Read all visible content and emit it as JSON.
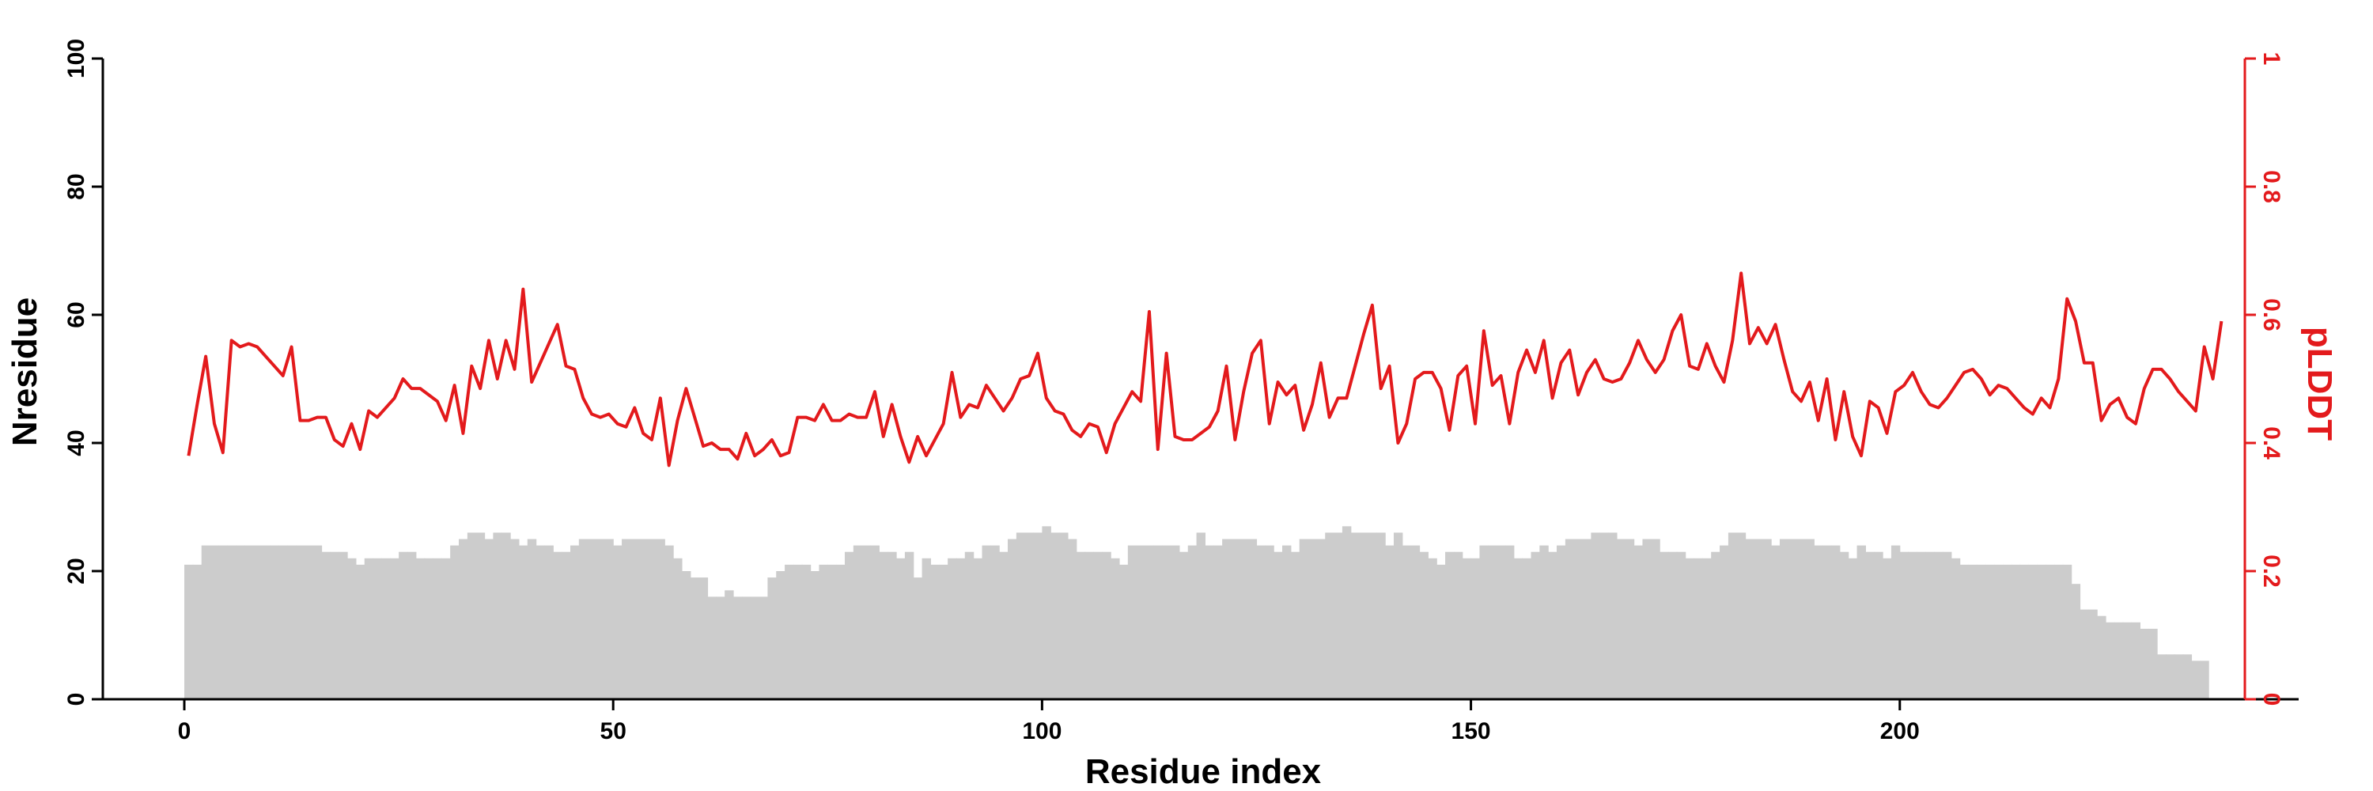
{
  "chart_data": {
    "type": "bar+line",
    "xlabel": "Residue index",
    "ylabel_left": "Nresidue",
    "ylabel_right": "pLDDT",
    "xlim": [
      -9.5,
      246.5
    ],
    "ylim_left": [
      0,
      100
    ],
    "ylim_right": [
      0,
      1
    ],
    "x_ticks": [
      0,
      50,
      100,
      150,
      200
    ],
    "y_left_ticks": [
      0,
      20,
      40,
      60,
      80,
      100
    ],
    "y_right_ticks": [
      "0",
      "0.2",
      "0.4",
      "0.6",
      "0.8",
      "1"
    ],
    "grid": false,
    "colors": {
      "bars": "#cccccc",
      "line": "#e31a1c",
      "axis": "#000000",
      "right_axis": "#e31a1c"
    },
    "series": [
      {
        "type": "bar",
        "axis": "left",
        "x_start": 0,
        "values": [
          21,
          21,
          24,
          24,
          24,
          24,
          24,
          24,
          24,
          24,
          24,
          24,
          24,
          24,
          24,
          24,
          23,
          23,
          23,
          22,
          21,
          22,
          22,
          22,
          22,
          23,
          23,
          22,
          22,
          22,
          22,
          24,
          25,
          26,
          26,
          25,
          26,
          26,
          25,
          24,
          25,
          24,
          24,
          23,
          23,
          24,
          25,
          25,
          25,
          25,
          24,
          25,
          25,
          25,
          25,
          25,
          24,
          22,
          20,
          19,
          19,
          16,
          16,
          17,
          16,
          16,
          16,
          16,
          19,
          20,
          21,
          21,
          21,
          20,
          21,
          21,
          21,
          23,
          24,
          24,
          24,
          23,
          23,
          22,
          23,
          19,
          22,
          21,
          21,
          22,
          22,
          23,
          22,
          24,
          24,
          23,
          25,
          26,
          26,
          26,
          27,
          26,
          26,
          25,
          23,
          23,
          23,
          23,
          22,
          21,
          24,
          24,
          24,
          24,
          24,
          24,
          23,
          24,
          26,
          24,
          24,
          25,
          25,
          25,
          25,
          24,
          24,
          23,
          24,
          23,
          25,
          25,
          25,
          26,
          26,
          27,
          26,
          26,
          26,
          26,
          24,
          26,
          24,
          24,
          23,
          22,
          21,
          23,
          23,
          22,
          22,
          24,
          24,
          24,
          24,
          22,
          22,
          23,
          24,
          23,
          24,
          25,
          25,
          25,
          26,
          26,
          26,
          25,
          25,
          24,
          25,
          25,
          23,
          23,
          23,
          22,
          22,
          22,
          23,
          24,
          26,
          26,
          25,
          25,
          25,
          24,
          25,
          25,
          25,
          25,
          24,
          24,
          24,
          23,
          22,
          24,
          23,
          23,
          22,
          24,
          23,
          23,
          23,
          23,
          23,
          23,
          22,
          21,
          21,
          21,
          21,
          21,
          21,
          21,
          21,
          21,
          21,
          21,
          21,
          21,
          18,
          14,
          14,
          13,
          12,
          12,
          12,
          12,
          11,
          11,
          7,
          7,
          7,
          7,
          6,
          6
        ]
      },
      {
        "type": "line",
        "axis": "right",
        "x_start": 0,
        "values": [
          0.38,
          0.46,
          0.535,
          0.43,
          0.385,
          0.56,
          0.55,
          0.555,
          0.55,
          0.535,
          0.52,
          0.505,
          0.55,
          0.435,
          0.435,
          0.44,
          0.44,
          0.405,
          0.395,
          0.43,
          0.39,
          0.45,
          0.44,
          0.455,
          0.47,
          0.5,
          0.485,
          0.485,
          0.475,
          0.465,
          0.435,
          0.49,
          0.415,
          0.52,
          0.485,
          0.56,
          0.5,
          0.56,
          0.515,
          0.64,
          0.495,
          0.525,
          0.555,
          0.585,
          0.52,
          0.515,
          0.47,
          0.445,
          0.44,
          0.445,
          0.43,
          0.425,
          0.455,
          0.415,
          0.405,
          0.47,
          0.365,
          0.435,
          0.485,
          0.44,
          0.395,
          0.4,
          0.39,
          0.39,
          0.375,
          0.415,
          0.38,
          0.39,
          0.405,
          0.38,
          0.385,
          0.44,
          0.44,
          0.435,
          0.46,
          0.435,
          0.435,
          0.445,
          0.44,
          0.44,
          0.48,
          0.41,
          0.46,
          0.41,
          0.37,
          0.41,
          0.38,
          0.405,
          0.43,
          0.51,
          0.44,
          0.46,
          0.455,
          0.49,
          0.47,
          0.45,
          0.47,
          0.5,
          0.505,
          0.54,
          0.47,
          0.45,
          0.445,
          0.42,
          0.41,
          0.43,
          0.425,
          0.385,
          0.43,
          0.455,
          0.48,
          0.465,
          0.605,
          0.39,
          0.54,
          0.41,
          0.405,
          0.405,
          0.415,
          0.425,
          0.45,
          0.52,
          0.405,
          0.48,
          0.54,
          0.56,
          0.43,
          0.495,
          0.475,
          0.49,
          0.42,
          0.46,
          0.525,
          0.44,
          0.47,
          0.47,
          0.52,
          0.57,
          0.615,
          0.485,
          0.52,
          0.4,
          0.43,
          0.5,
          0.51,
          0.51,
          0.485,
          0.42,
          0.505,
          0.52,
          0.43,
          0.575,
          0.49,
          0.505,
          0.43,
          0.51,
          0.545,
          0.51,
          0.56,
          0.47,
          0.525,
          0.545,
          0.475,
          0.51,
          0.53,
          0.5,
          0.495,
          0.5,
          0.525,
          0.56,
          0.53,
          0.51,
          0.53,
          0.575,
          0.6,
          0.52,
          0.515,
          0.555,
          0.52,
          0.495,
          0.56,
          0.665,
          0.555,
          0.58,
          0.555,
          0.585,
          0.53,
          0.48,
          0.465,
          0.495,
          0.435,
          0.5,
          0.405,
          0.48,
          0.41,
          0.38,
          0.465,
          0.455,
          0.415,
          0.48,
          0.49,
          0.51,
          0.48,
          0.46,
          0.455,
          0.47,
          0.49,
          0.51,
          0.515,
          0.5,
          0.475,
          0.49,
          0.485,
          0.47,
          0.455,
          0.445,
          0.47,
          0.455,
          0.5,
          0.625,
          0.59,
          0.525,
          0.525,
          0.435,
          0.46,
          0.47,
          0.44,
          0.43,
          0.485,
          0.515,
          0.515,
          0.5,
          0.48,
          0.465,
          0.45,
          0.55,
          0.5,
          0.59
        ]
      }
    ]
  }
}
